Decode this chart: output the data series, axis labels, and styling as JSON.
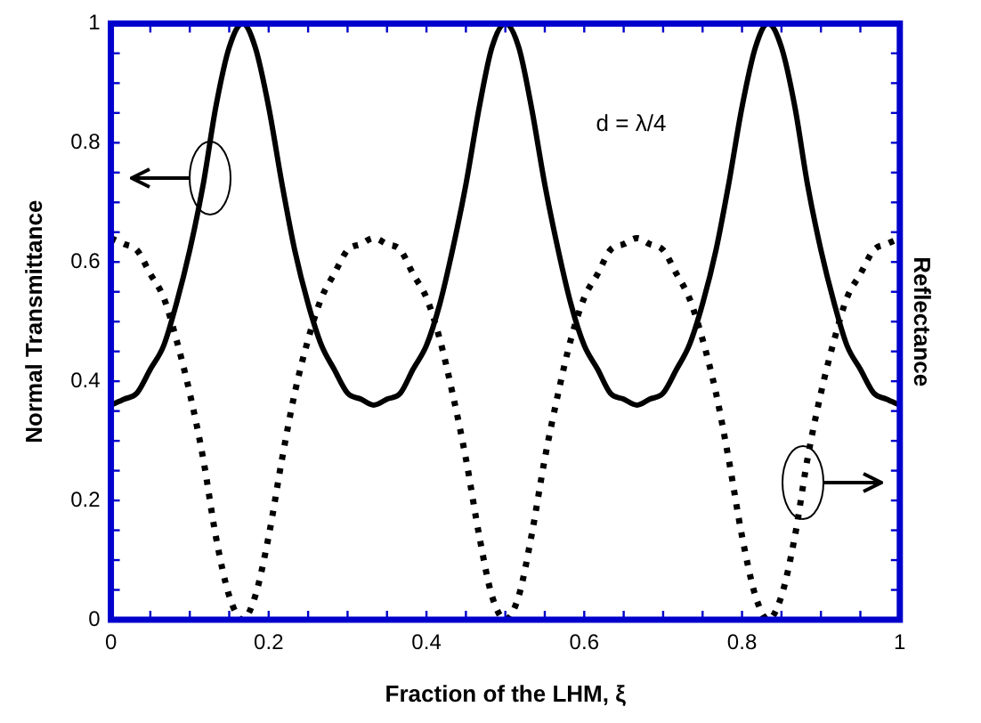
{
  "chart_data": {
    "type": "line",
    "xlabel": "Fraction of the LHM, ξ",
    "ylabel": "Normal Transmittance",
    "y2label": "Reflectance",
    "annotations": [
      "d = λ/4"
    ],
    "x": [
      0,
      0.017,
      0.033,
      0.05,
      0.067,
      0.083,
      0.1,
      0.117,
      0.133,
      0.15,
      0.167,
      0.183,
      0.2,
      0.217,
      0.233,
      0.25,
      0.267,
      0.283,
      0.3,
      0.317,
      0.333,
      0.35,
      0.367,
      0.383,
      0.4,
      0.417,
      0.433,
      0.45,
      0.467,
      0.483,
      0.5,
      0.517,
      0.533,
      0.55,
      0.567,
      0.583,
      0.6,
      0.617,
      0.633,
      0.65,
      0.667,
      0.683,
      0.7,
      0.717,
      0.733,
      0.75,
      0.767,
      0.783,
      0.8,
      0.817,
      0.833,
      0.85,
      0.867,
      0.883,
      0.9,
      0.917,
      0.933,
      0.95,
      0.967,
      0.983,
      1
    ],
    "series": [
      {
        "color": "#000000",
        "line_style": "solid",
        "values": [
          0.36,
          0.37,
          0.38,
          0.42,
          0.46,
          0.53,
          0.62,
          0.73,
          0.86,
          0.96,
          1,
          0.96,
          0.86,
          0.73,
          0.62,
          0.53,
          0.46,
          0.42,
          0.38,
          0.37,
          0.36,
          0.37,
          0.38,
          0.42,
          0.46,
          0.53,
          0.62,
          0.73,
          0.86,
          0.96,
          1,
          0.96,
          0.86,
          0.73,
          0.62,
          0.53,
          0.46,
          0.42,
          0.38,
          0.37,
          0.36,
          0.37,
          0.38,
          0.42,
          0.46,
          0.53,
          0.62,
          0.73,
          0.86,
          0.96,
          1,
          0.96,
          0.86,
          0.73,
          0.62,
          0.53,
          0.46,
          0.42,
          0.38,
          0.37,
          0.36
        ]
      },
      {
        "color": "#000000",
        "line_style": "dotted",
        "values": [
          0.64,
          0.63,
          0.62,
          0.58,
          0.54,
          0.47,
          0.38,
          0.27,
          0.14,
          0.04,
          0,
          0.04,
          0.14,
          0.27,
          0.38,
          0.47,
          0.54,
          0.58,
          0.62,
          0.63,
          0.64,
          0.63,
          0.62,
          0.58,
          0.54,
          0.47,
          0.38,
          0.27,
          0.14,
          0.04,
          0,
          0.04,
          0.14,
          0.27,
          0.38,
          0.47,
          0.54,
          0.58,
          0.62,
          0.63,
          0.64,
          0.63,
          0.62,
          0.58,
          0.54,
          0.47,
          0.38,
          0.27,
          0.14,
          0.04,
          0,
          0.04,
          0.14,
          0.27,
          0.38,
          0.47,
          0.54,
          0.58,
          0.62,
          0.63,
          0.64
        ]
      }
    ],
    "xlim": [
      0,
      1
    ],
    "xticks": [
      0,
      {
        "value": 0.05,
        "label": null
      },
      {
        "value": 0.1,
        "label": null
      },
      {
        "value": 0.15,
        "label": null
      },
      0.2,
      {
        "value": 0.25,
        "label": null
      },
      {
        "value": 0.3,
        "label": null
      },
      {
        "value": 0.35,
        "label": null
      },
      0.4,
      {
        "value": 0.45,
        "label": null
      },
      {
        "value": 0.5,
        "label": null
      },
      {
        "value": 0.55,
        "label": null
      },
      0.6,
      {
        "value": 0.65,
        "label": null
      },
      {
        "value": 0.7,
        "label": null
      },
      {
        "value": 0.75,
        "label": null
      },
      0.8,
      {
        "value": 0.85,
        "label": null
      },
      {
        "value": 0.9,
        "label": null
      },
      {
        "value": 0.95,
        "label": null
      },
      1
    ],
    "ylim": [
      0,
      1
    ],
    "yticks": [
      0,
      {
        "value": 0.05,
        "label": null
      },
      {
        "value": 0.1,
        "label": null
      },
      {
        "value": 0.15,
        "label": null
      },
      0.2,
      {
        "value": 0.25,
        "label": null
      },
      {
        "value": 0.3,
        "label": null
      },
      {
        "value": 0.35,
        "label": null
      },
      0.4,
      {
        "value": 0.45,
        "label": null
      },
      {
        "value": 0.5,
        "label": null
      },
      {
        "value": 0.55,
        "label": null
      },
      0.6,
      {
        "value": 0.65,
        "label": null
      },
      {
        "value": 0.7,
        "label": null
      },
      {
        "value": 0.75,
        "label": null
      },
      0.8,
      {
        "value": 0.85,
        "label": null
      },
      {
        "value": 0.9,
        "label": null
      },
      {
        "value": 0.95,
        "label": null
      },
      1
    ],
    "grid": false,
    "legend": false,
    "marker": "none"
  }
}
